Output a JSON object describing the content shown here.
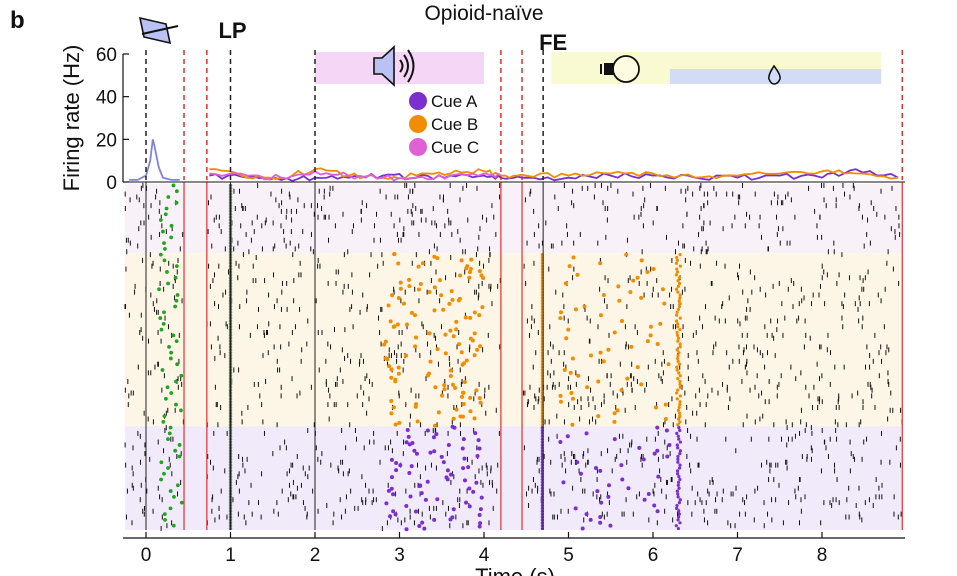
{
  "panel_letter": "b",
  "chart_data": {
    "type": "raster_with_psth",
    "title": "Opioid-naïve",
    "xlabel": "Time (s)",
    "ylabel": "Firing rate (Hz)",
    "x_ticks": [
      0,
      1,
      2,
      3,
      4,
      5,
      6,
      7,
      8
    ],
    "y_ticks": [
      0,
      20,
      40,
      60
    ],
    "xlim": [
      -0.25,
      8.95
    ],
    "ylim": [
      0,
      60
    ],
    "events": [
      {
        "label": "LP",
        "x": 1.0
      },
      {
        "label": "FE",
        "x": 4.7
      }
    ],
    "segments": [
      [
        -0.25,
        0.45
      ],
      [
        0.72,
        4.2
      ],
      [
        4.45,
        8.95
      ]
    ],
    "stimulus_bars": [
      {
        "name": "tone",
        "x_start": 2.0,
        "x_end": 4.0,
        "color": "#f6d6f6",
        "icon": "speaker-icon"
      },
      {
        "name": "light",
        "x_start": 5.2,
        "x_end": 8.7,
        "color": "#fafad2",
        "icon": "light-bulb-icon"
      },
      {
        "name": "reward",
        "x_start": 6.2,
        "x_end": 8.7,
        "color": "#d3dcf7",
        "icon": "water-drop-icon"
      }
    ],
    "legend": [
      {
        "label": "Cue A",
        "color": "#7b2fd0"
      },
      {
        "label": "Cue B",
        "color": "#f28c00"
      },
      {
        "label": "Cue C",
        "color": "#e060d6"
      }
    ],
    "colors": {
      "event_green": "#1fa51f",
      "segment_red": "#e03030",
      "baseline_blue": "#7d84e0",
      "cue_a_bg": "#f1eafb",
      "cue_b_bg": "#fdf5e6",
      "cue_c_bg": "#f8f1f8"
    },
    "trial_blocks": [
      {
        "cue": "Cue C",
        "trial_fraction": 0.2
      },
      {
        "cue": "Cue B",
        "trial_fraction": 0.5
      },
      {
        "cue": "Cue A",
        "trial_fraction": 0.3
      }
    ],
    "psth_series": [
      {
        "name": "baseline",
        "x": [
          -0.2,
          -0.1,
          -0.05,
          0.0,
          0.05,
          0.08,
          0.1,
          0.15,
          0.2,
          0.3,
          0.4
        ],
        "y": [
          1,
          1,
          2,
          3,
          10,
          20,
          17,
          7,
          2,
          1,
          1
        ]
      },
      {
        "name": "Cue A",
        "x": [
          0.75,
          1.2,
          1.6,
          2.0,
          2.4,
          2.8,
          3.2,
          3.6,
          4.0,
          4.2,
          4.5,
          5.0,
          5.5,
          6.0,
          6.5,
          7.0,
          7.5,
          8.0,
          8.4,
          8.9
        ],
        "y": [
          3,
          2,
          1,
          2,
          2,
          3,
          2,
          3,
          3,
          2,
          2,
          2,
          3,
          3,
          2,
          2,
          3,
          2,
          6,
          2
        ]
      },
      {
        "name": "Cue B",
        "x": [
          0.75,
          1.2,
          1.6,
          2.0,
          2.4,
          2.8,
          3.2,
          3.6,
          4.0,
          4.2,
          4.5,
          5.0,
          5.5,
          6.0,
          6.5,
          7.0,
          7.5,
          8.0,
          8.4,
          8.9
        ],
        "y": [
          6,
          2,
          2,
          6,
          3,
          2,
          3,
          4,
          5,
          3,
          3,
          3,
          4,
          4,
          2,
          3,
          4,
          5,
          4,
          2
        ]
      },
      {
        "name": "Cue C",
        "x": [
          0.75,
          1.2,
          1.6,
          2.0,
          2.4,
          2.8,
          3.2,
          3.6,
          4.0,
          4.2
        ],
        "y": [
          4,
          3,
          2,
          5,
          3,
          2,
          2,
          3,
          4,
          3
        ]
      }
    ]
  }
}
